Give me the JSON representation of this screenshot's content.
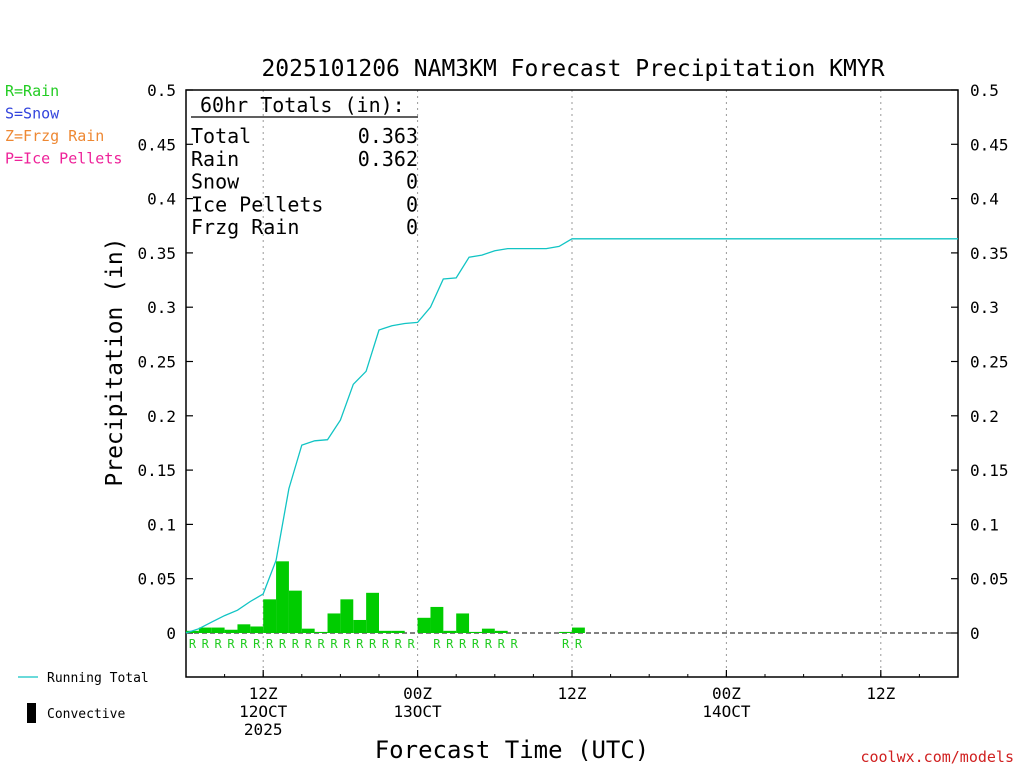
{
  "chart_data": {
    "type": "bar",
    "title": "2025101206 NAM3KM Forecast Precipitation KMYR",
    "xlabel": "Forecast Time (UTC)",
    "ylabel": "Precipitation (in)",
    "ylim": [
      -0.04,
      0.5
    ],
    "yticks": [
      0,
      0.05,
      0.1,
      0.15,
      0.2,
      0.25,
      0.3,
      0.35,
      0.4,
      0.45,
      0.5
    ],
    "ytick_labels": [
      "0",
      "0.05",
      "0.1",
      "0.15",
      "0.2",
      "0.25",
      "0.3",
      "0.35",
      "0.4",
      "0.45",
      "0.5"
    ],
    "xlim_hours": [
      0,
      60
    ],
    "xticks": [
      {
        "hour": 6,
        "lines": [
          "12Z",
          "12OCT",
          "2025"
        ]
      },
      {
        "hour": 18,
        "lines": [
          "00Z",
          "13OCT"
        ]
      },
      {
        "hour": 30,
        "lines": [
          "12Z"
        ]
      },
      {
        "hour": 42,
        "lines": [
          "00Z",
          "14OCT"
        ]
      },
      {
        "hour": 54,
        "lines": [
          "12Z"
        ]
      }
    ],
    "grid": "vertical dotted",
    "legend": [
      {
        "label": "R=Rain",
        "color": "#22cc22"
      },
      {
        "label": "S=Snow",
        "color": "#3344dd"
      },
      {
        "label": "Z=Frzg Rain",
        "color": "#ee8833"
      },
      {
        "label": "P=Ice Pellets",
        "color": "#ee2299"
      }
    ],
    "series_legend": [
      {
        "label": "Running Total",
        "color": "#11c4c4",
        "kind": "line"
      },
      {
        "label": "Convective",
        "color": "#000000",
        "kind": "bar"
      }
    ],
    "totals": {
      "header": "60hr Totals (in):",
      "rows": [
        {
          "label": "Total",
          "value": "0.363"
        },
        {
          "label": "Rain",
          "value": "0.362"
        },
        {
          "label": "Snow",
          "value": "0"
        },
        {
          "label": "Ice Pellets",
          "value": "0"
        },
        {
          "label": "Frzg Rain",
          "value": "0"
        }
      ]
    },
    "hourly_precip": {
      "hours": [
        1,
        2,
        3,
        4,
        5,
        6,
        7,
        8,
        9,
        10,
        11,
        12,
        13,
        14,
        15,
        16,
        17,
        18,
        19,
        20,
        21,
        22,
        23,
        24,
        25,
        26,
        27,
        28,
        29,
        30,
        31
      ],
      "values": [
        0.002,
        0.005,
        0.005,
        0.003,
        0.008,
        0.006,
        0.031,
        0.066,
        0.039,
        0.004,
        0.001,
        0.018,
        0.031,
        0.012,
        0.037,
        0.002,
        0.002,
        0,
        0.014,
        0.024,
        0.002,
        0.018,
        0.001,
        0.004,
        0.002,
        0,
        0,
        0,
        0,
        0.001,
        0.005
      ],
      "bar_color": "#00cc00"
    },
    "precip_type_markers": {
      "hours": [
        1,
        2,
        3,
        4,
        5,
        6,
        7,
        8,
        9,
        10,
        11,
        12,
        13,
        14,
        15,
        16,
        17,
        18,
        20,
        21,
        22,
        23,
        24,
        25,
        26,
        30,
        31
      ],
      "label": "R",
      "color": "#22cc22"
    },
    "running_total": {
      "x": [
        0,
        1,
        2,
        3,
        4,
        5,
        6,
        7,
        8,
        9,
        10,
        11,
        12,
        13,
        14,
        15,
        16,
        17,
        18,
        19,
        20,
        21,
        22,
        23,
        24,
        25,
        26,
        27,
        28,
        29,
        30,
        31,
        32,
        33,
        60
      ],
      "y": [
        0,
        0.004,
        0.01,
        0.016,
        0.021,
        0.029,
        0.036,
        0.067,
        0.133,
        0.173,
        0.177,
        0.178,
        0.196,
        0.229,
        0.241,
        0.279,
        0.283,
        0.285,
        0.286,
        0.3,
        0.326,
        0.327,
        0.346,
        0.348,
        0.352,
        0.354,
        0.354,
        0.354,
        0.354,
        0.356,
        0.363,
        0.363,
        0.363,
        0.363,
        0.363
      ],
      "color": "#11c4c4"
    }
  },
  "watermark": "coolwx.com/models"
}
